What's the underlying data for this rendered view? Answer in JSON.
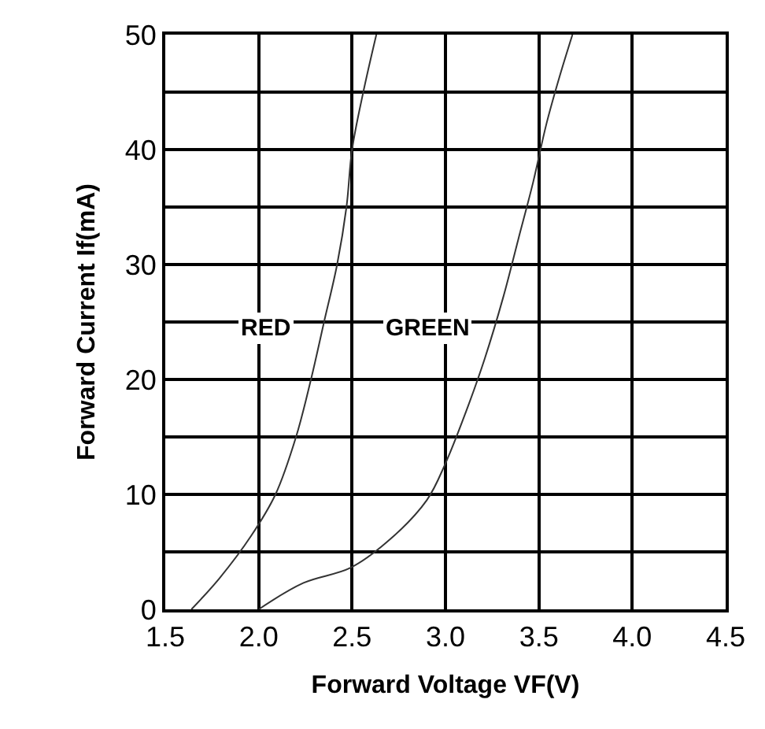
{
  "chart_data": {
    "type": "line",
    "xlabel": "Forward Voltage VF(V)",
    "ylabel": "Forward Current If(mA)",
    "xlim": [
      1.5,
      4.5
    ],
    "ylim": [
      0,
      50
    ],
    "xticks": [
      1.5,
      {
        "value": 2,
        "label": "2.0"
      },
      2.5,
      {
        "value": 3,
        "label": "3.0"
      },
      3.5,
      {
        "value": 4,
        "label": "4.0"
      },
      4.5
    ],
    "yticks": [
      0,
      {
        "value": 5,
        "label": null
      },
      10,
      {
        "value": 15,
        "label": null
      },
      20,
      {
        "value": 25,
        "label": null
      },
      30,
      {
        "value": 35,
        "label": null
      },
      40,
      {
        "value": 45,
        "label": null
      },
      50
    ],
    "grid": true,
    "legend": false,
    "marker": "none",
    "line_style": "solid",
    "series": [
      {
        "name": "RED",
        "color": "#333333",
        "x": [
          1.64,
          1.79,
          1.96,
          2.09,
          2.2,
          2.28,
          2.35,
          2.42,
          2.47,
          2.5,
          2.56,
          2.63
        ],
        "values": [
          0,
          2.7,
          6.4,
          10,
          15,
          20,
          25,
          30,
          35,
          40,
          45,
          50
        ]
      },
      {
        "name": "GREEN",
        "color": "#333333",
        "x": [
          2.0,
          2.24,
          2.49,
          2.69,
          2.9,
          3.0,
          3.11,
          3.21,
          3.31,
          3.39,
          3.47,
          3.54,
          3.61,
          3.68
        ],
        "values": [
          0,
          2.3,
          3.6,
          5.9,
          9.5,
          12.7,
          17.2,
          21.8,
          27.2,
          32.2,
          37.2,
          42.2,
          46.3,
          50
        ]
      }
    ]
  }
}
